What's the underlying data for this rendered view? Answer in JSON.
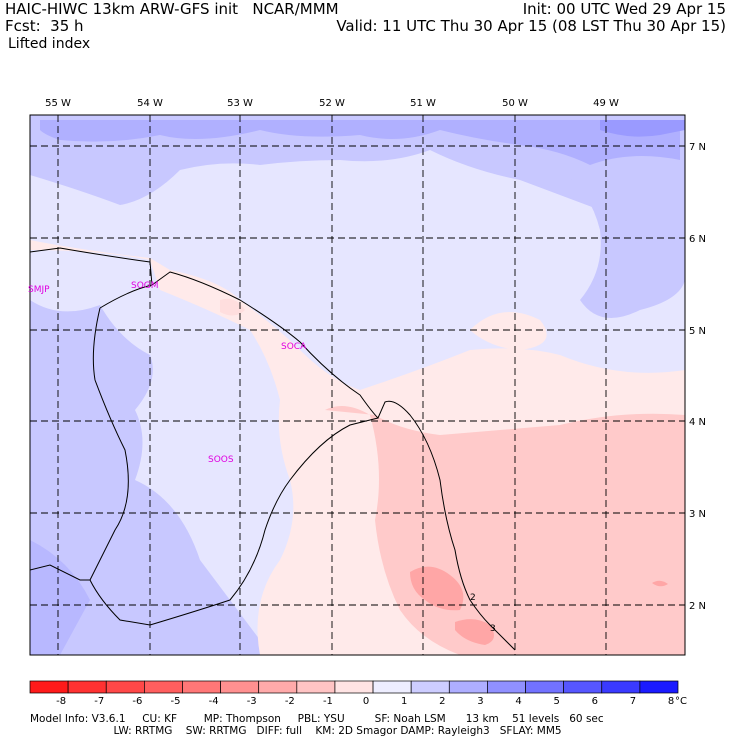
{
  "header": {
    "title_left": "HAIC-HIWC 13km ARW-GFS init   NCAR/MMM",
    "init": "Init: 00 UTC Wed 29 Apr 15",
    "fcst": "Fcst:  35 h",
    "valid": "Valid: 11 UTC Thu 30 Apr 15 (08 LST Thu 30 Apr 15)",
    "field": "Lifted index"
  },
  "map": {
    "lon_labels": [
      "55 W",
      "54 W",
      "53 W",
      "52 W",
      "51 W",
      "50 W",
      "49 W"
    ],
    "lat_labels": [
      "7 N",
      "6 N",
      "5 N",
      "4 N",
      "3 N",
      "2 N"
    ],
    "stations": [
      "SMJP",
      "SOGM",
      "SOCA",
      "SOOS"
    ],
    "contour_labels": [
      "2",
      "3"
    ]
  },
  "colorbar": {
    "ticks": [
      "-8",
      "-7",
      "-6",
      "-5",
      "-4",
      "-3",
      "-2",
      "-1",
      "0",
      "1",
      "2",
      "3",
      "4",
      "5",
      "6",
      "7",
      "8"
    ],
    "unit": "°C",
    "colors": [
      "#ff1a1a",
      "#ff3232",
      "#ff4848",
      "#ff5e5e",
      "#ff7777",
      "#ff9090",
      "#ffaaaa",
      "#ffc4c4",
      "#ffe4e4",
      "#eeeeff",
      "#cdcdff",
      "#aeaeff",
      "#9090ff",
      "#7272ff",
      "#5656ff",
      "#3a3aff",
      "#1a1aff"
    ]
  },
  "footer": {
    "line1": "Model Info: V3.6.1     CU: KF        MP: Thompson     PBL: YSU         SF: Noah LSM      13 km    51 levels   60 sec",
    "line2": "                         LW: RRTMG    SW: RRTMG   DIFF: full    KM: 2D Smagor DAMP: Rayleigh3   SFLAY: MM5"
  }
}
